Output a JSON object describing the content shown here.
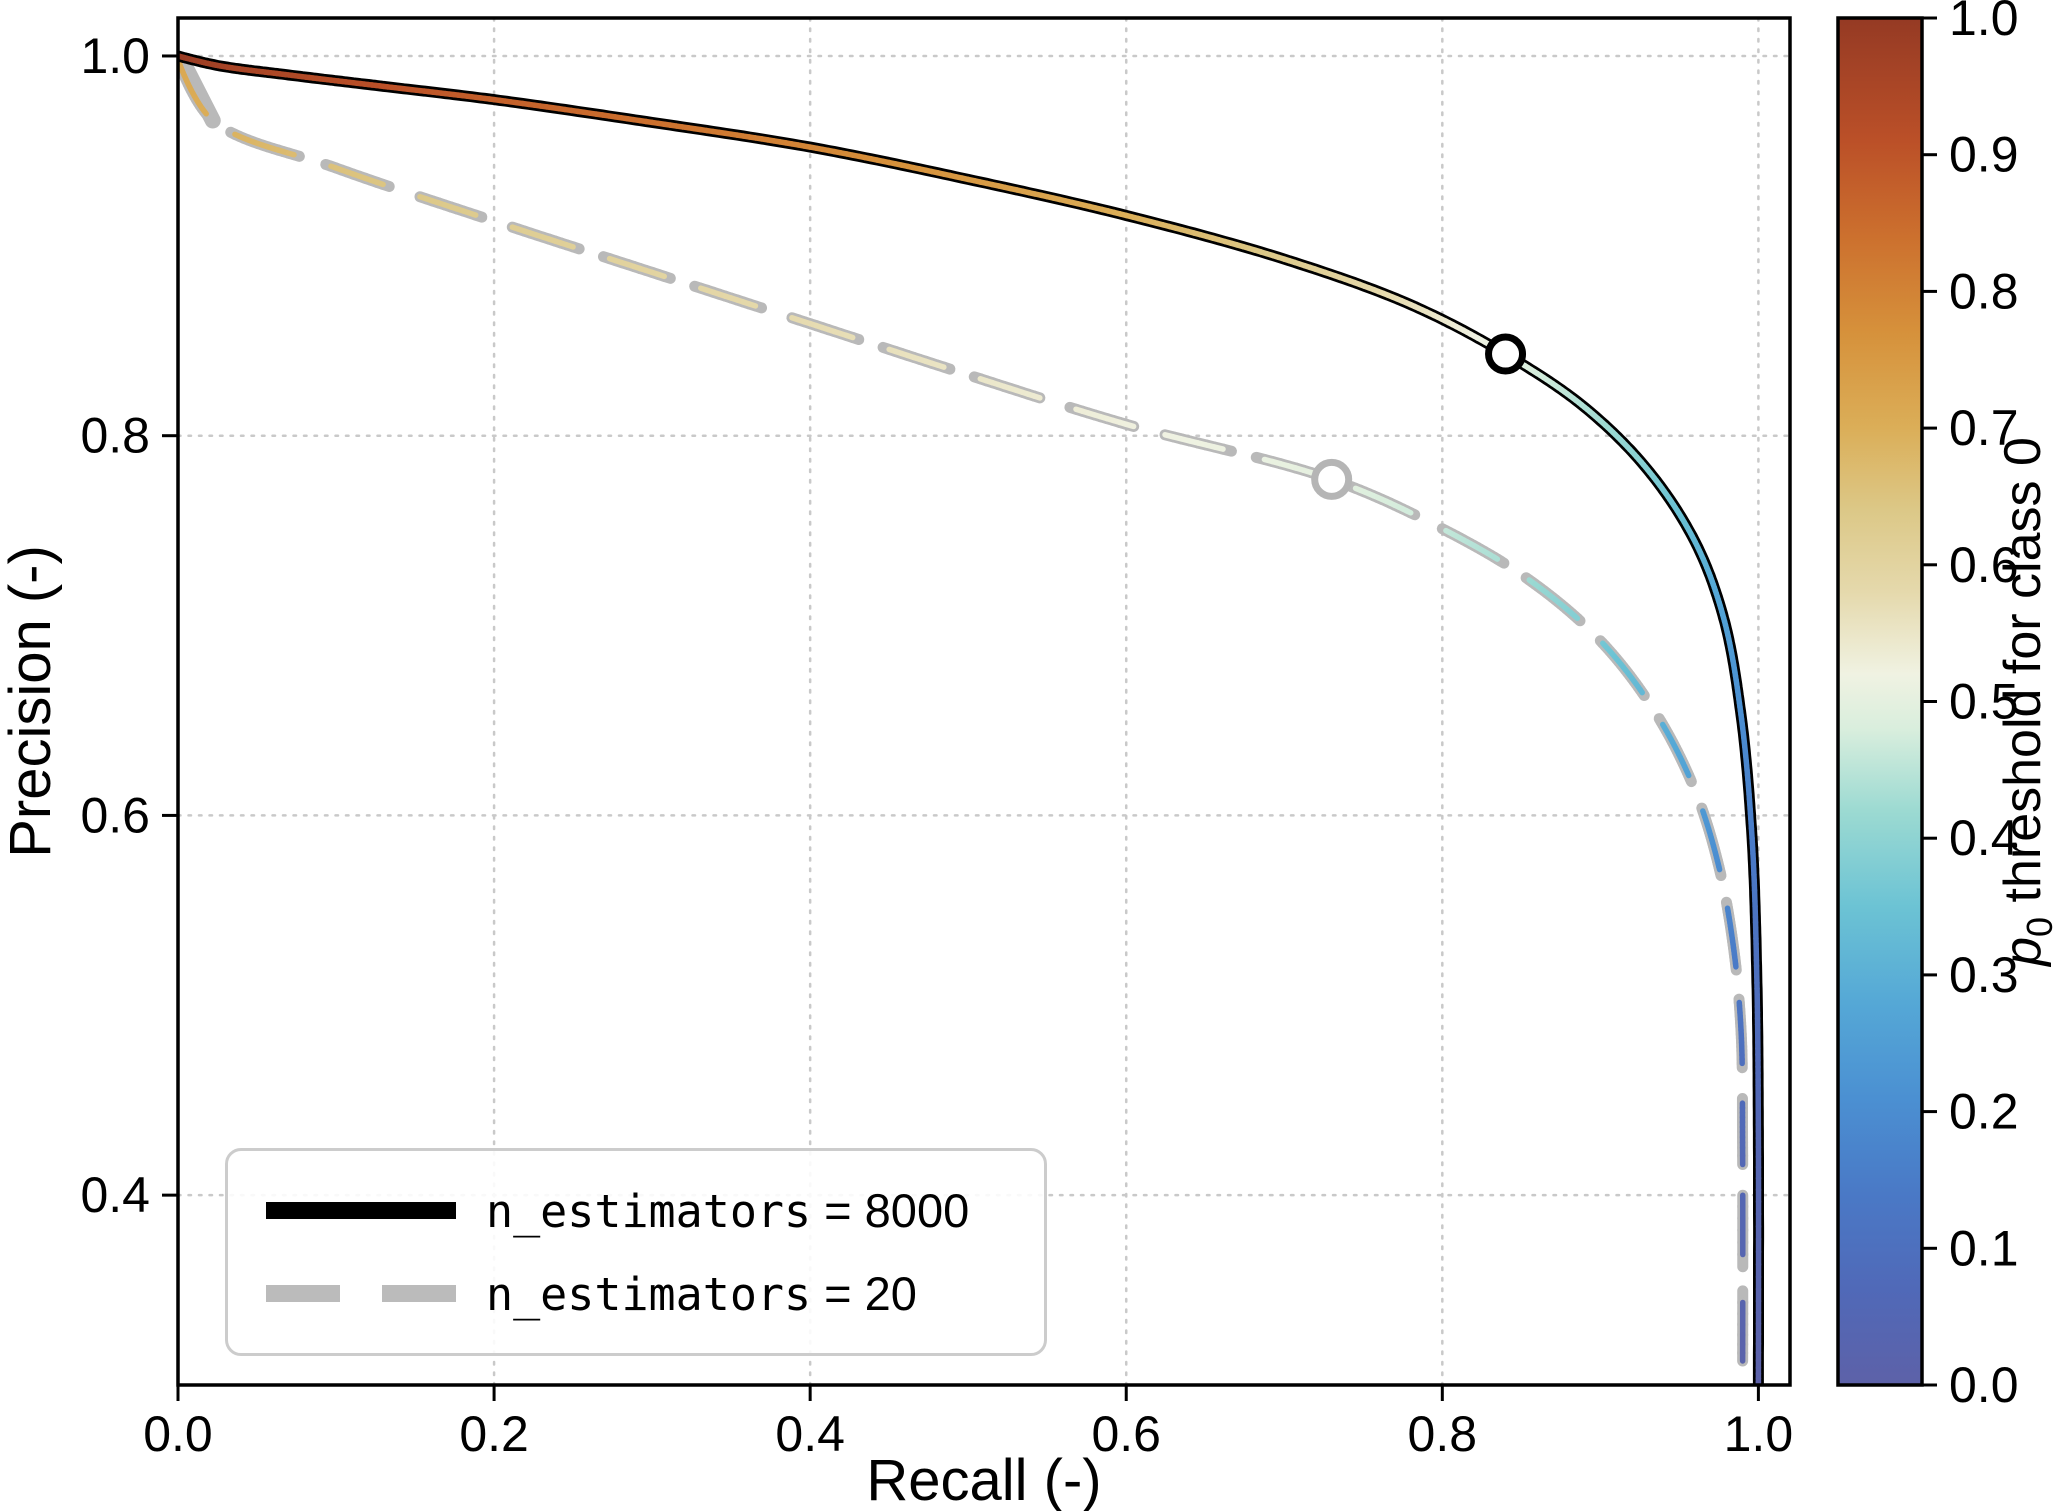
{
  "figure": {
    "background": "#ffffff"
  },
  "axes": {
    "xlabel": "Recall (-)",
    "ylabel": "Precision (-)",
    "xticks": [
      0.0,
      0.2,
      0.4,
      0.6,
      0.8,
      1.0
    ],
    "yticks": [
      0.4,
      0.6,
      0.8,
      1.0
    ],
    "grid_color": "#c9c9c9",
    "frame_color": "#000000",
    "tick_color": "#000000"
  },
  "legend": {
    "items": [
      {
        "code": "n_estimators",
        "rest": " = 8000",
        "line_style": "solid",
        "line_color": "#000000"
      },
      {
        "code": "n_estimators",
        "rest": " = 20",
        "line_style": "dashed",
        "line_color": "#bbbbbb"
      }
    ]
  },
  "colorbar": {
    "ticks": [
      1.0,
      0.9,
      0.8,
      0.7,
      0.6,
      0.5,
      0.4,
      0.3,
      0.2,
      0.1,
      0.0
    ],
    "label_var": "p",
    "label_sub": "0",
    "label_rest": " threshold for class 0"
  },
  "chart_data": {
    "type": "line",
    "title": "",
    "xlabel": "Recall (-)",
    "ylabel": "Precision (-)",
    "xlim": [
      0,
      1.02
    ],
    "ylim": [
      0.3,
      1.02
    ],
    "grid": true,
    "legend_position": "lower left",
    "colorbar_label": "p0 threshold for class 0",
    "colorbar_range": [
      0.0,
      1.0
    ],
    "colormap_stops": [
      [
        0.0,
        "#5d61a8"
      ],
      [
        0.07,
        "#5069b8"
      ],
      [
        0.14,
        "#4a79c6"
      ],
      [
        0.21,
        "#4b90d2"
      ],
      [
        0.28,
        "#55a8d6"
      ],
      [
        0.35,
        "#6cc3d4"
      ],
      [
        0.42,
        "#9cdad2"
      ],
      [
        0.48,
        "#d9eedd"
      ],
      [
        0.52,
        "#f0f2e2"
      ],
      [
        0.58,
        "#e5d9ac"
      ],
      [
        0.64,
        "#dcc887"
      ],
      [
        0.7,
        "#dbae58"
      ],
      [
        0.77,
        "#d6913b"
      ],
      [
        0.84,
        "#cc702e"
      ],
      [
        0.91,
        "#bb5028"
      ],
      [
        1.0,
        "#953a24"
      ]
    ],
    "series": [
      {
        "name": "n_estimators = 8000",
        "style": "solid",
        "edge_color": "#000000",
        "marker": {
          "x": 0.84,
          "y": 0.843,
          "threshold": 0.5,
          "color": "#000000"
        },
        "points": [
          [
            0.0,
            1.0,
            1.0
          ],
          [
            0.025,
            0.995,
            0.965
          ],
          [
            0.07,
            0.99,
            0.94
          ],
          [
            0.13,
            0.984,
            0.91
          ],
          [
            0.2,
            0.977,
            0.875
          ],
          [
            0.3,
            0.965,
            0.84
          ],
          [
            0.4,
            0.952,
            0.795
          ],
          [
            0.5,
            0.935,
            0.75
          ],
          [
            0.6,
            0.916,
            0.7
          ],
          [
            0.7,
            0.893,
            0.63
          ],
          [
            0.78,
            0.869,
            0.565
          ],
          [
            0.84,
            0.843,
            0.5
          ],
          [
            0.89,
            0.815,
            0.44
          ],
          [
            0.93,
            0.782,
            0.385
          ],
          [
            0.96,
            0.744,
            0.32
          ],
          [
            0.978,
            0.704,
            0.26
          ],
          [
            0.989,
            0.653,
            0.205
          ],
          [
            0.996,
            0.588,
            0.15
          ],
          [
            0.999,
            0.515,
            0.1
          ],
          [
            1.0,
            0.43,
            0.05
          ],
          [
            1.0,
            0.3,
            0.0
          ]
        ]
      },
      {
        "name": "n_estimators = 20",
        "style": "dashed",
        "edge_color": "#b9b9b9",
        "marker": {
          "x": 0.73,
          "y": 0.777,
          "threshold": 0.5,
          "color": "#b5b5b5"
        },
        "points": [
          [
            0.0,
            0.998,
            0.72
          ],
          [
            0.022,
            0.966,
            0.7
          ],
          [
            0.1,
            0.941,
            0.655
          ],
          [
            0.2,
            0.913,
            0.625
          ],
          [
            0.3,
            0.886,
            0.6
          ],
          [
            0.4,
            0.859,
            0.575
          ],
          [
            0.5,
            0.832,
            0.55
          ],
          [
            0.6,
            0.806,
            0.525
          ],
          [
            0.73,
            0.777,
            0.5
          ],
          [
            0.8,
            0.751,
            0.46
          ],
          [
            0.855,
            0.724,
            0.42
          ],
          [
            0.9,
            0.692,
            0.365
          ],
          [
            0.935,
            0.654,
            0.305
          ],
          [
            0.96,
            0.613,
            0.25
          ],
          [
            0.975,
            0.573,
            0.2
          ],
          [
            0.984,
            0.532,
            0.155
          ],
          [
            0.989,
            0.487,
            0.11
          ],
          [
            0.99,
            0.425,
            0.06
          ],
          [
            0.99,
            0.3,
            0.0
          ]
        ]
      }
    ]
  }
}
